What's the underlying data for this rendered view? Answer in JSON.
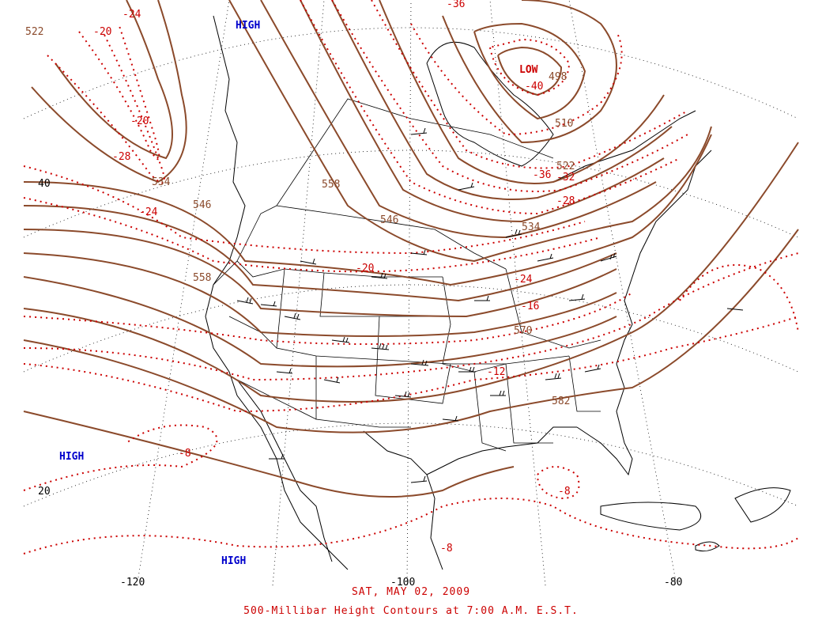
{
  "map": {
    "date": "SAT, MAY 02, 2009",
    "title": "500-Millibar Height Contours at 7:00 A.M. E.S.T.",
    "colors": {
      "height_contour": "#8b4a2b",
      "temperature_isotherm": "#cc0000",
      "pressure_center_high": "#0000cc",
      "pressure_center_low": "#cc0000",
      "geography": "#000000",
      "graticule": "#000000"
    },
    "pressure_centers": [
      {
        "label": "HIGH",
        "kind": "high"
      },
      {
        "label": "LOW",
        "kind": "low"
      },
      {
        "label": "HIGH",
        "kind": "high"
      },
      {
        "label": "HIGH",
        "kind": "high"
      }
    ],
    "height_labels": [
      "522",
      "534",
      "546",
      "558",
      "546",
      "558",
      "510",
      "498",
      "522",
      "534",
      "570",
      "582"
    ],
    "temperature_labels": [
      "-24",
      "-20",
      "-20",
      "-28",
      "-24",
      "-36",
      "-40",
      "-36",
      "-32",
      "-28",
      "-20",
      "-24",
      "-16",
      "-12",
      "-8",
      "-8",
      "-8"
    ],
    "latitude_labels": [
      "40",
      "20"
    ],
    "longitude_labels": [
      "-120",
      "-100",
      "-80"
    ]
  }
}
